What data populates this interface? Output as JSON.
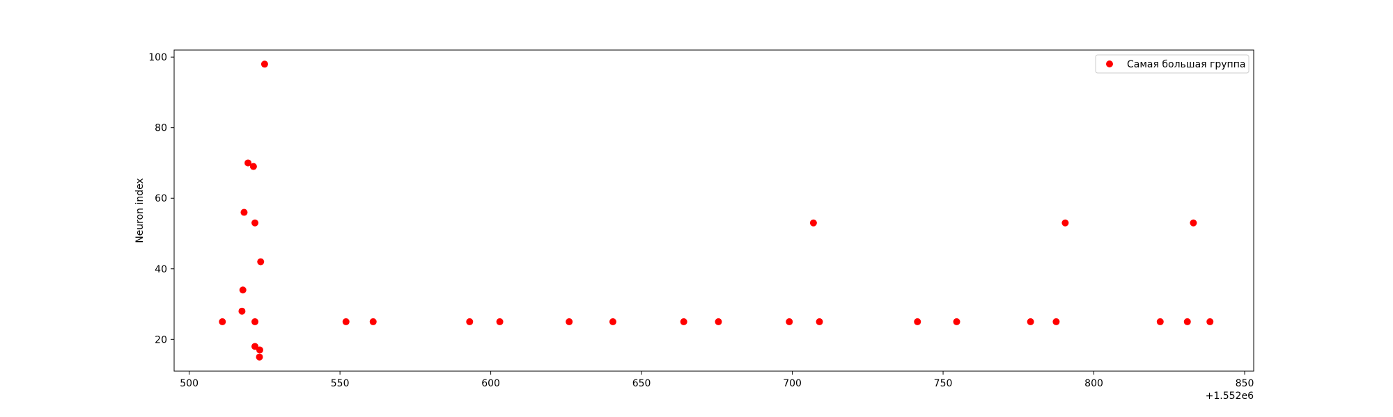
{
  "chart_data": {
    "type": "scatter",
    "xlabel": "",
    "ylabel": "Neuron index",
    "x_offset_label": "+1.552e6",
    "xlim": [
      495,
      853
    ],
    "ylim": [
      11,
      102
    ],
    "x_ticks": [
      500,
      550,
      600,
      650,
      700,
      750,
      800,
      850
    ],
    "y_ticks": [
      20,
      40,
      60,
      80,
      100
    ],
    "grid": false,
    "legend": {
      "position": "top-right"
    },
    "series": [
      {
        "name": "Самая большая группа",
        "color": "#ff0000",
        "points": [
          {
            "x": 511,
            "y": 25
          },
          {
            "x": 517.5,
            "y": 28
          },
          {
            "x": 517.8,
            "y": 34
          },
          {
            "x": 518.2,
            "y": 56
          },
          {
            "x": 519.5,
            "y": 70
          },
          {
            "x": 521.3,
            "y": 69
          },
          {
            "x": 521.8,
            "y": 53
          },
          {
            "x": 521.8,
            "y": 25
          },
          {
            "x": 521.8,
            "y": 18
          },
          {
            "x": 523.3,
            "y": 15
          },
          {
            "x": 523.4,
            "y": 17
          },
          {
            "x": 523.7,
            "y": 42
          },
          {
            "x": 525,
            "y": 98
          },
          {
            "x": 552,
            "y": 25
          },
          {
            "x": 561,
            "y": 25
          },
          {
            "x": 593,
            "y": 25
          },
          {
            "x": 603,
            "y": 25
          },
          {
            "x": 626,
            "y": 25
          },
          {
            "x": 640.5,
            "y": 25
          },
          {
            "x": 664,
            "y": 25
          },
          {
            "x": 675.5,
            "y": 25
          },
          {
            "x": 699,
            "y": 25
          },
          {
            "x": 707,
            "y": 53
          },
          {
            "x": 709,
            "y": 25
          },
          {
            "x": 741.5,
            "y": 25
          },
          {
            "x": 754.5,
            "y": 25
          },
          {
            "x": 779,
            "y": 25
          },
          {
            "x": 787.5,
            "y": 25
          },
          {
            "x": 790.5,
            "y": 53
          },
          {
            "x": 822,
            "y": 25
          },
          {
            "x": 831,
            "y": 25
          },
          {
            "x": 833,
            "y": 53
          },
          {
            "x": 838.5,
            "y": 25
          }
        ]
      }
    ]
  }
}
